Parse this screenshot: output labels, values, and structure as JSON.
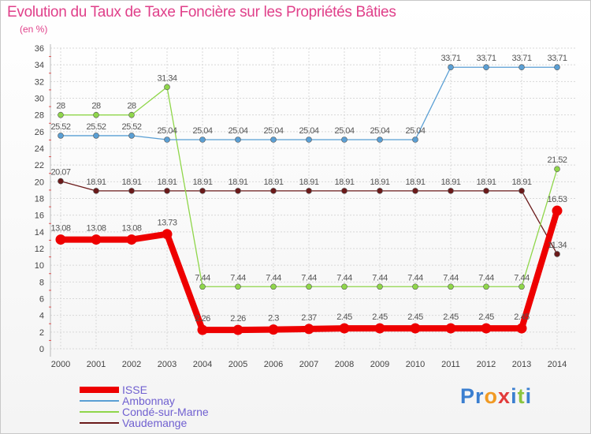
{
  "chart_data": {
    "type": "line",
    "title": "Evolution du Taux de Taxe Foncière sur les Propriétés Bâties",
    "unit_label": "(en %)",
    "xlabel": "",
    "ylabel": "",
    "ylim": [
      0,
      36
    ],
    "y_ticks": [
      0,
      2,
      4,
      6,
      8,
      10,
      12,
      14,
      16,
      18,
      20,
      22,
      24,
      26,
      28,
      30,
      32,
      34,
      36
    ],
    "categories": [
      "2000",
      "2001",
      "2002",
      "2003",
      "2004",
      "2005",
      "2006",
      "2007",
      "2008",
      "2009",
      "2010",
      "2011",
      "2012",
      "2013",
      "2014"
    ],
    "series": [
      {
        "name": "ISSE",
        "color": "#ee0000",
        "labels": [
          "13.08",
          "13.08",
          "13.08",
          "13.73",
          "2.26",
          "2.26",
          "2.3",
          "2.37",
          "2.45",
          "2.45",
          "2.45",
          "2.45",
          "2.45",
          "2.45",
          "16.53"
        ],
        "values": [
          13.08,
          13.08,
          13.08,
          13.73,
          2.26,
          2.26,
          2.3,
          2.37,
          2.45,
          2.45,
          2.45,
          2.45,
          2.45,
          2.45,
          16.53
        ]
      },
      {
        "name": "Ambonnay",
        "color": "#5a9fd4",
        "labels": [
          "25.52",
          "25.52",
          "25.52",
          "25.04",
          "25.04",
          "25.04",
          "25.04",
          "25.04",
          "25.04",
          "25.04",
          "25.04",
          "33.71",
          "33.71",
          "33.71",
          "33.71"
        ],
        "values": [
          25.52,
          25.52,
          25.52,
          25.04,
          25.04,
          25.04,
          25.04,
          25.04,
          25.04,
          25.04,
          25.04,
          33.71,
          33.71,
          33.71,
          33.71
        ]
      },
      {
        "name": "Condé-sur-Marne",
        "color": "#8fd64a",
        "labels": [
          "28",
          "28",
          "28",
          "31.34",
          "7.44",
          "7.44",
          "7.44",
          "7.44",
          "7.44",
          "7.44",
          "7.44",
          "7.44",
          "7.44",
          "7.44",
          "21.52"
        ],
        "values": [
          28,
          28,
          28,
          31.34,
          7.44,
          7.44,
          7.44,
          7.44,
          7.44,
          7.44,
          7.44,
          7.44,
          7.44,
          7.44,
          21.52
        ]
      },
      {
        "name": "Vaudemange",
        "color": "#6b1a1a",
        "labels": [
          "20.07",
          "18.91",
          "18.91",
          "18.91",
          "18.91",
          "18.91",
          "18.91",
          "18.91",
          "18.91",
          "18.91",
          "18.91",
          "18.91",
          "18.91",
          "18.91",
          "11.34"
        ],
        "values": [
          20.07,
          18.91,
          18.91,
          18.91,
          18.91,
          18.91,
          18.91,
          18.91,
          18.91,
          18.91,
          18.91,
          18.91,
          18.91,
          18.91,
          11.34
        ]
      }
    ]
  },
  "branding": {
    "text": "Proxiti",
    "letters": [
      {
        "ch": "P",
        "color": "#3b7fd0"
      },
      {
        "ch": "r",
        "color": "#3b7fd0"
      },
      {
        "ch": "o",
        "color": "#f09a24"
      },
      {
        "ch": "x",
        "color": "#e23b3b"
      },
      {
        "ch": "i",
        "color": "#3b7fd0"
      },
      {
        "ch": "t",
        "color": "#8bc53f"
      },
      {
        "ch": "i",
        "color": "#3b7fd0"
      }
    ]
  }
}
